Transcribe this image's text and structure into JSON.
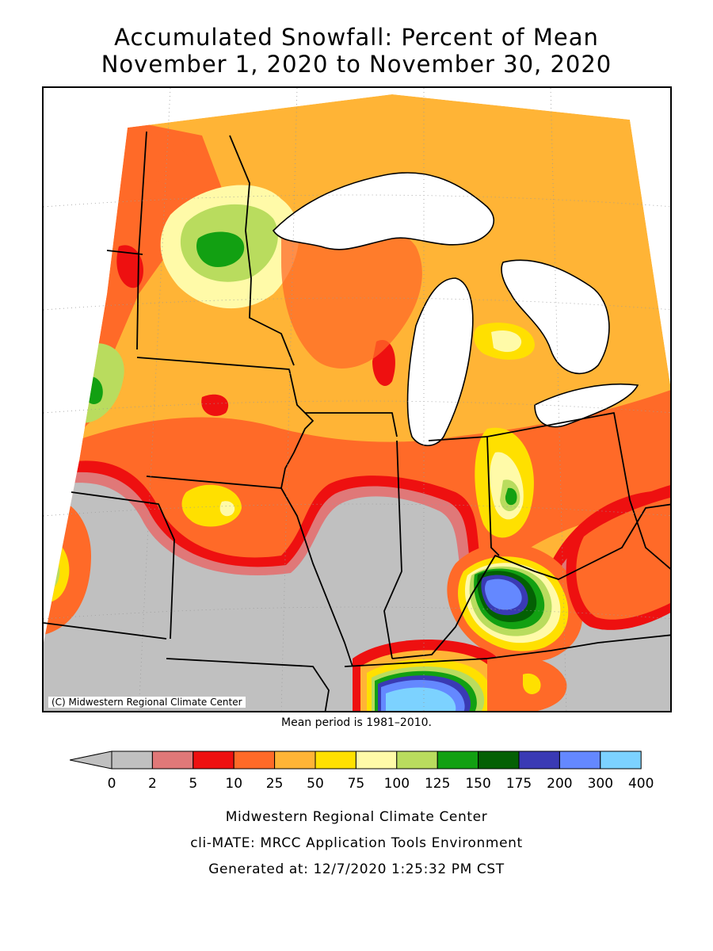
{
  "title_line1": "Accumulated Snowfall: Percent of Mean",
  "title_line2": "November 1, 2020 to November 30, 2020",
  "copyright": "(C) Midwestern Regional Climate Center",
  "mean_period": "Mean period is 1981–2010.",
  "legend": {
    "units": "percent of mean",
    "ticks": [
      "0",
      "2",
      "5",
      "10",
      "25",
      "50",
      "75",
      "100",
      "125",
      "150",
      "175",
      "200",
      "300",
      "400"
    ],
    "colors": [
      "#c0c0c0",
      "#e07878",
      "#ee1010",
      "#ff6a28",
      "#ffb436",
      "#ffe000",
      "#fffaa8",
      "#b9dc5e",
      "#12a012",
      "#046004",
      "#3a3ab4",
      "#6488ff",
      "#7cd2ff"
    ]
  },
  "map": {
    "background_color": "#ffb436",
    "regions": [
      {
        "name": "no-snow-south-missouri-illinois-indiana",
        "category": "0-2",
        "color": "#c0c0c0"
      },
      {
        "name": "below-normal-central-band",
        "category": "10-25",
        "color": "#ff6a28"
      },
      {
        "name": "near-normal-northern-minnesota",
        "category": "75-100",
        "color": "#fffaa8"
      },
      {
        "name": "above-normal-north-central-minnesota",
        "category": "125-150",
        "color": "#12a012"
      },
      {
        "name": "above-normal-kentucky-ohio-river",
        "category": "175-300",
        "color": "#6488ff"
      },
      {
        "name": "above-normal-western-kentucky",
        "category": "200-400",
        "color": "#7cd2ff"
      }
    ]
  },
  "footer": {
    "line1": "Midwestern Regional Climate Center",
    "line2": "cli-MATE: MRCC Application Tools Environment",
    "line3": "Generated at: 12/7/2020 1:25:32 PM CST"
  }
}
